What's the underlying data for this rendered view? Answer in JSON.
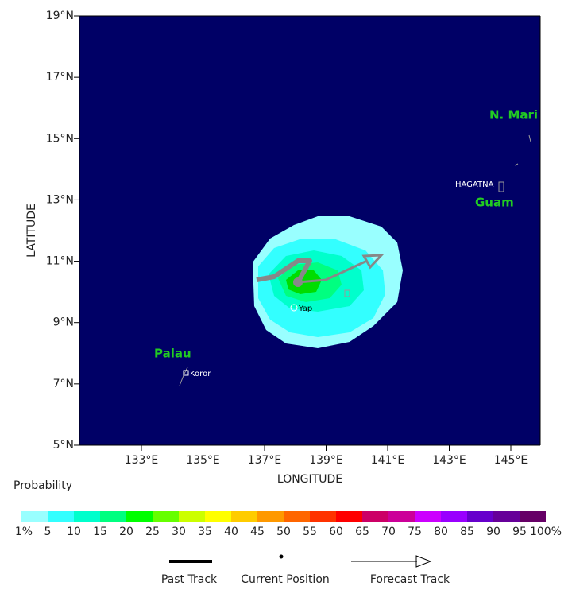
{
  "map": {
    "y_axis_label": "LATITUDE",
    "x_axis_label": "LONGITUDE",
    "lat_ticks": [
      "19°N",
      "17°N",
      "15°N",
      "13°N",
      "11°N",
      "9°N",
      "7°N",
      "5°N"
    ],
    "lon_ticks": [
      "133°E",
      "135°E",
      "137°E",
      "139°E",
      "141°E",
      "143°E",
      "145°E"
    ],
    "places": [
      {
        "label": "N. Mari"
      },
      {
        "label": "HAGATNA"
      },
      {
        "label": "Guam"
      },
      {
        "label": "Palau"
      },
      {
        "label": "Koror"
      },
      {
        "label": "Yap"
      }
    ]
  },
  "legend": {
    "title": "Probability",
    "colors": [
      "#99ffff",
      "#33ffff",
      "#00ffcc",
      "#00ff80",
      "#00ff00",
      "#66ff00",
      "#ccff00",
      "#ffff00",
      "#ffcc00",
      "#ff9900",
      "#ff6600",
      "#ff3300",
      "#ff0000",
      "#cc0066",
      "#cc0099",
      "#cc00ff",
      "#9900ff",
      "#6600cc",
      "#660099",
      "#660066"
    ],
    "labels": [
      "1%",
      "5",
      "10",
      "15",
      "20",
      "25",
      "30",
      "35",
      "40",
      "45",
      "50",
      "55",
      "60",
      "65",
      "70",
      "75",
      "80",
      "85",
      "90",
      "95",
      "100%"
    ]
  },
  "track_legend": {
    "past": "Past Track",
    "current": "Current Position",
    "forecast": "Forecast Track"
  }
}
